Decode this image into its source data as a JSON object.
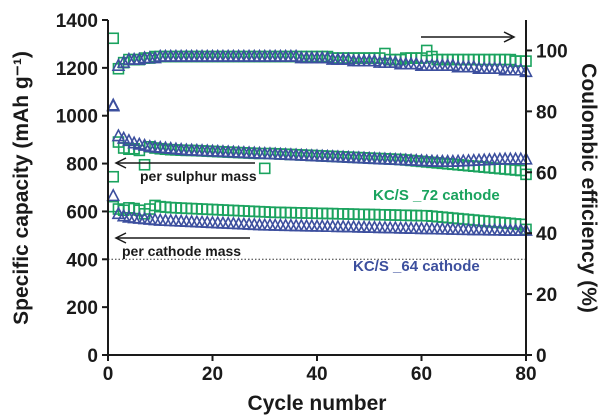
{
  "chart_data": {
    "type": "scatter",
    "x_axis": {
      "label": "Cycle number",
      "range": [
        0,
        80
      ],
      "ticks": [
        "0",
        "20",
        "40",
        "60",
        "80"
      ]
    },
    "y_axis_left": {
      "label": "Specific capacity (mAh g⁻¹)",
      "range": [
        0,
        1400
      ],
      "ticks": [
        "0",
        "200",
        "400",
        "600",
        "800",
        "1000",
        "1200",
        "1400"
      ]
    },
    "y_axis_right": {
      "label": "Coulombic efficiency (%)",
      "range": [
        0,
        110
      ],
      "ticks": [
        "0",
        "20",
        "40",
        "60",
        "80",
        "100"
      ]
    },
    "annotations": {
      "per_sulphur_mass": "per sulphur mass",
      "per_cathode_mass": "per cathode mass",
      "label_72": "KC/S _72 cathode",
      "label_64": "KC/S _64 cathode"
    },
    "reference_line": {
      "y": 400,
      "style": "dotted"
    },
    "colors": {
      "kc72": "#1aa35e",
      "kc64": "#3c4f9e",
      "axis": "#1a1a1a"
    },
    "series": [
      {
        "id": "kc72_ce",
        "cathode": "KC/S_72",
        "metric": "Coulombic efficiency",
        "axis": "right",
        "marker": "square",
        "color": "#1aa35e",
        "x": [
          1,
          2,
          3,
          4,
          5,
          6,
          7,
          8,
          9,
          10,
          11,
          12,
          13,
          14,
          15,
          16,
          17,
          18,
          19,
          20,
          21,
          22,
          23,
          24,
          25,
          26,
          27,
          28,
          29,
          30,
          31,
          32,
          33,
          34,
          35,
          36,
          37,
          38,
          39,
          40,
          41,
          42,
          43,
          44,
          45,
          46,
          47,
          48,
          49,
          50,
          51,
          52,
          53,
          54,
          55,
          56,
          57,
          58,
          59,
          60,
          61,
          62,
          63,
          64,
          65,
          66,
          67,
          68,
          69,
          70,
          71,
          72,
          73,
          74,
          75,
          76,
          77,
          78,
          79,
          80
        ],
        "y": [
          104,
          94,
          96,
          97,
          97,
          97,
          97.5,
          97.5,
          98,
          98,
          98,
          98,
          98,
          98,
          98,
          98,
          98,
          98,
          98,
          98,
          98,
          98,
          98,
          98,
          98,
          98,
          98,
          98,
          98,
          98,
          98,
          98,
          98,
          98,
          98,
          98,
          98,
          98,
          98,
          98,
          98,
          98,
          97.5,
          97.5,
          97.5,
          97.5,
          97.5,
          97.5,
          97.5,
          97.5,
          97.5,
          97.5,
          99,
          97,
          97,
          97,
          97.5,
          97.5,
          97.5,
          97.5,
          100,
          98,
          97,
          97,
          97,
          97,
          97,
          97,
          97,
          97,
          97,
          97,
          97,
          97,
          97,
          97,
          97,
          96.5,
          96.5,
          96.5
        ]
      },
      {
        "id": "kc64_ce",
        "cathode": "KC/S_64",
        "metric": "Coulombic efficiency",
        "axis": "right",
        "marker": "triangle",
        "color": "#3c4f9e",
        "x": [
          1,
          2,
          3,
          4,
          5,
          6,
          7,
          8,
          9,
          10,
          11,
          12,
          13,
          14,
          15,
          16,
          17,
          18,
          19,
          20,
          21,
          22,
          23,
          24,
          25,
          26,
          27,
          28,
          29,
          30,
          31,
          32,
          33,
          34,
          35,
          36,
          37,
          38,
          39,
          40,
          41,
          42,
          43,
          44,
          45,
          46,
          47,
          48,
          49,
          50,
          51,
          52,
          53,
          54,
          55,
          56,
          57,
          58,
          59,
          60,
          61,
          62,
          63,
          64,
          65,
          66,
          67,
          68,
          69,
          70,
          71,
          72,
          73,
          74,
          75,
          76,
          77,
          78,
          79,
          80
        ],
        "y": [
          82,
          95,
          96,
          97,
          97,
          97,
          97.5,
          97.5,
          97.5,
          98,
          98,
          98,
          98,
          98,
          98,
          98,
          98,
          98,
          98,
          98,
          98,
          98,
          98,
          98,
          98,
          98,
          98,
          98,
          98,
          98,
          98,
          98,
          98,
          98,
          98,
          98,
          97.5,
          97.5,
          97.5,
          97.5,
          97.5,
          97.5,
          97,
          97,
          97,
          97,
          96.5,
          96.5,
          96.5,
          96.5,
          96.5,
          96,
          96,
          96,
          96,
          95.5,
          95.5,
          95.5,
          95.5,
          95,
          95,
          95,
          95,
          95,
          95,
          95,
          94.5,
          94.5,
          94.5,
          94.5,
          94,
          94,
          94,
          94,
          94,
          93.5,
          93.5,
          93.5,
          93.5,
          93
        ]
      },
      {
        "id": "kc72_s",
        "cathode": "KC/S_72",
        "metric": "Specific capacity per sulphur mass",
        "axis": "left",
        "marker": "square",
        "color": "#1aa35e",
        "x": [
          1,
          2,
          3,
          4,
          5,
          6,
          7,
          8,
          9,
          10,
          11,
          12,
          13,
          14,
          15,
          16,
          17,
          18,
          19,
          20,
          21,
          22,
          23,
          24,
          25,
          26,
          27,
          28,
          29,
          30,
          31,
          32,
          33,
          34,
          35,
          36,
          37,
          38,
          39,
          40,
          41,
          42,
          43,
          44,
          45,
          46,
          47,
          48,
          49,
          50,
          51,
          52,
          53,
          54,
          55,
          56,
          57,
          58,
          59,
          60,
          61,
          62,
          63,
          64,
          65,
          66,
          67,
          68,
          69,
          70,
          71,
          72,
          73,
          74,
          75,
          76,
          77,
          78,
          79,
          80
        ],
        "y": [
          745,
          890,
          865,
          860,
          862,
          855,
          795,
          870,
          865,
          862,
          860,
          858,
          857,
          856,
          855,
          855,
          854,
          853,
          852,
          851,
          850,
          849,
          848,
          847,
          846,
          845,
          844,
          843,
          842,
          780,
          842,
          841,
          840,
          839,
          838,
          837,
          836,
          835,
          834,
          833,
          832,
          831,
          830,
          829,
          828,
          827,
          826,
          825,
          824,
          823,
          822,
          821,
          820,
          819,
          818,
          817,
          815,
          813,
          811,
          809,
          807,
          805,
          803,
          801,
          799,
          797,
          795,
          793,
          791,
          789,
          787,
          785,
          783,
          781,
          779,
          777,
          775,
          773,
          771,
          755
        ]
      },
      {
        "id": "kc64_s",
        "cathode": "KC/S_64",
        "metric": "Specific capacity per sulphur mass",
        "axis": "left",
        "marker": "triangle",
        "color": "#3c4f9e",
        "x": [
          1,
          2,
          3,
          4,
          5,
          6,
          7,
          8,
          9,
          10,
          11,
          12,
          13,
          14,
          15,
          16,
          17,
          18,
          19,
          20,
          21,
          22,
          23,
          24,
          25,
          26,
          27,
          28,
          29,
          30,
          31,
          32,
          33,
          34,
          35,
          36,
          37,
          38,
          39,
          40,
          41,
          42,
          43,
          44,
          45,
          46,
          47,
          48,
          49,
          50,
          51,
          52,
          53,
          54,
          55,
          56,
          57,
          58,
          59,
          60,
          61,
          62,
          63,
          64,
          65,
          66,
          67,
          68,
          69,
          70,
          71,
          72,
          73,
          74,
          75,
          76,
          77,
          78,
          79,
          80
        ],
        "y": [
          1040,
          915,
          905,
          895,
          885,
          880,
          875,
          870,
          868,
          866,
          864,
          862,
          860,
          858,
          856,
          855,
          854,
          853,
          852,
          851,
          850,
          849,
          848,
          847,
          846,
          845,
          844,
          843,
          842,
          841,
          840,
          839,
          838,
          837,
          836,
          835,
          834,
          833,
          832,
          831,
          830,
          829,
          828,
          827,
          826,
          825,
          824,
          823,
          822,
          821,
          820,
          819,
          818,
          817,
          816,
          815,
          814,
          813,
          812,
          811,
          810,
          809,
          808,
          808,
          808,
          808,
          809,
          810,
          811,
          812,
          813,
          814,
          815,
          816,
          817,
          818,
          818,
          818,
          818,
          818
        ]
      },
      {
        "id": "kc72_c",
        "cathode": "KC/S_72",
        "metric": "Specific capacity per cathode mass",
        "axis": "left",
        "marker": "square",
        "color": "#1aa35e",
        "x": [
          1,
          2,
          3,
          4,
          5,
          6,
          7,
          8,
          9,
          10,
          11,
          12,
          13,
          14,
          15,
          16,
          17,
          18,
          19,
          20,
          21,
          22,
          23,
          24,
          25,
          26,
          27,
          28,
          29,
          30,
          31,
          32,
          33,
          34,
          35,
          36,
          37,
          38,
          39,
          40,
          41,
          42,
          43,
          44,
          45,
          46,
          47,
          48,
          49,
          50,
          51,
          52,
          53,
          54,
          55,
          56,
          57,
          58,
          59,
          60,
          61,
          62,
          63,
          64,
          65,
          66,
          67,
          68,
          69,
          70,
          71,
          72,
          73,
          74,
          75,
          76,
          77,
          78,
          79,
          80
        ],
        "y": [
          620,
          610,
          605,
          615,
          612,
          605,
          590,
          610,
          625,
          620,
          618,
          616,
          615,
          614,
          613,
          612,
          611,
          610,
          609,
          608,
          607,
          606,
          605,
          604,
          603,
          602,
          601,
          600,
          599,
          598,
          597,
          596,
          596,
          595,
          595,
          594,
          594,
          593,
          593,
          592,
          592,
          591,
          591,
          590,
          590,
          589,
          589,
          588,
          588,
          587,
          587,
          586,
          586,
          585,
          585,
          584,
          584,
          583,
          583,
          582,
          582,
          580,
          578,
          576,
          574,
          572,
          570,
          568,
          566,
          564,
          562,
          560,
          558,
          556,
          554,
          552,
          550,
          548,
          546,
          525
        ]
      },
      {
        "id": "kc64_c",
        "cathode": "KC/S_64",
        "metric": "Specific capacity per cathode mass",
        "axis": "left",
        "marker": "triangle",
        "color": "#3c4f9e",
        "x": [
          1,
          2,
          3,
          4,
          5,
          6,
          7,
          8,
          9,
          10,
          11,
          12,
          13,
          14,
          15,
          16,
          17,
          18,
          19,
          20,
          21,
          22,
          23,
          24,
          25,
          26,
          27,
          28,
          29,
          30,
          31,
          32,
          33,
          34,
          35,
          36,
          37,
          38,
          39,
          40,
          41,
          42,
          43,
          44,
          45,
          46,
          47,
          48,
          49,
          50,
          51,
          52,
          53,
          54,
          55,
          56,
          57,
          58,
          59,
          60,
          61,
          62,
          63,
          64,
          65,
          66,
          67,
          68,
          69,
          70,
          71,
          72,
          73,
          74,
          75,
          76,
          77,
          78,
          79,
          80
        ],
        "y": [
          665,
          590,
          580,
          575,
          572,
          570,
          568,
          566,
          564,
          562,
          561,
          560,
          559,
          558,
          557,
          556,
          555,
          554,
          553,
          552,
          551,
          550,
          549,
          548,
          547,
          546,
          545,
          544,
          543,
          542,
          542,
          541,
          541,
          540,
          540,
          539,
          539,
          538,
          538,
          537,
          537,
          536,
          536,
          535,
          535,
          534,
          534,
          533,
          533,
          532,
          532,
          531,
          531,
          530,
          530,
          529,
          529,
          528,
          528,
          527,
          527,
          526,
          526,
          525,
          525,
          524,
          524,
          523,
          523,
          522,
          522,
          522,
          521,
          521,
          521,
          520,
          520,
          520,
          520,
          520
        ]
      }
    ]
  }
}
